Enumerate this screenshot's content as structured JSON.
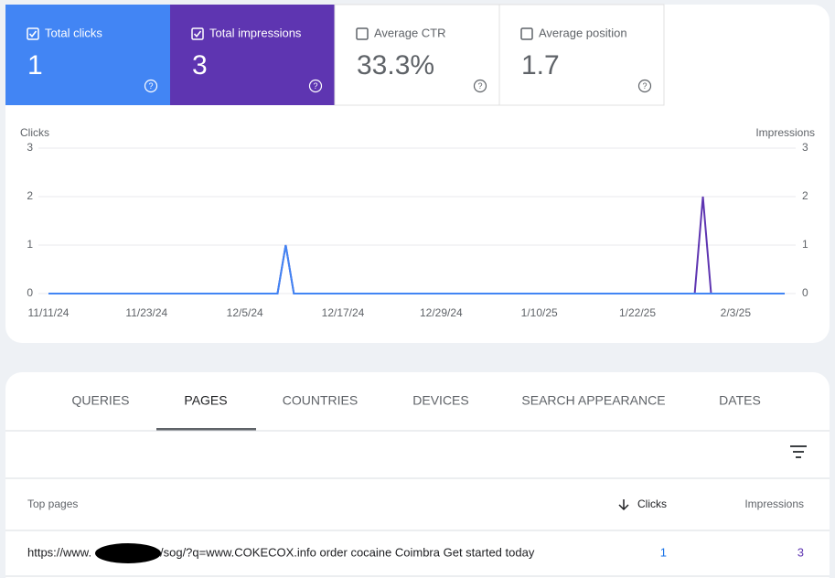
{
  "metrics": [
    {
      "label": "Total clicks",
      "value": "1",
      "checked": true,
      "color": "#4285f4"
    },
    {
      "label": "Total impressions",
      "value": "3",
      "checked": true,
      "color": "#5e35b1"
    },
    {
      "label": "Average CTR",
      "value": "33.3%",
      "checked": false
    },
    {
      "label": "Average position",
      "value": "1.7",
      "checked": false
    }
  ],
  "chart_data": {
    "type": "line",
    "x": [
      "11/11/24",
      "11/12/24",
      "11/13/24",
      "11/14/24",
      "11/15/24",
      "11/16/24",
      "11/17/24",
      "11/18/24",
      "11/19/24",
      "11/20/24",
      "11/21/24",
      "11/22/24",
      "11/23/24",
      "11/24/24",
      "11/25/24",
      "11/26/24",
      "11/27/24",
      "11/28/24",
      "11/29/24",
      "11/30/24",
      "12/1/24",
      "12/2/24",
      "12/3/24",
      "12/4/24",
      "12/5/24",
      "12/6/24",
      "12/7/24",
      "12/8/24",
      "12/9/24",
      "12/10/24",
      "12/11/24",
      "12/12/24",
      "12/13/24",
      "12/14/24",
      "12/15/24",
      "12/16/24",
      "12/17/24",
      "12/18/24",
      "12/19/24",
      "12/20/24",
      "12/21/24",
      "12/22/24",
      "12/23/24",
      "12/24/24",
      "12/25/24",
      "12/26/24",
      "12/27/24",
      "12/28/24",
      "12/29/24",
      "12/30/24",
      "12/31/24",
      "1/1/25",
      "1/2/25",
      "1/3/25",
      "1/4/25",
      "1/5/25",
      "1/6/25",
      "1/7/25",
      "1/8/25",
      "1/9/25",
      "1/10/25",
      "1/11/25",
      "1/12/25",
      "1/13/25",
      "1/14/25",
      "1/15/25",
      "1/16/25",
      "1/17/25",
      "1/18/25",
      "1/19/25",
      "1/20/25",
      "1/21/25",
      "1/22/25",
      "1/23/25",
      "1/24/25",
      "1/25/25",
      "1/26/25",
      "1/27/25",
      "1/28/25",
      "1/29/25",
      "1/30/25",
      "1/31/25",
      "2/1/25",
      "2/2/25",
      "2/3/25",
      "2/4/25",
      "2/5/25",
      "2/6/25",
      "2/7/25",
      "2/8/25",
      "2/9/25"
    ],
    "xticks": [
      "11/11/24",
      "11/23/24",
      "12/5/24",
      "12/17/24",
      "12/29/24",
      "1/10/25",
      "1/22/25",
      "2/3/25"
    ],
    "ylim": [
      0,
      3
    ],
    "yticks": [
      0,
      1,
      2,
      3
    ],
    "y2lim": [
      0,
      3
    ],
    "y2ticks": [
      0,
      1,
      2,
      3
    ],
    "grid": true,
    "series": [
      {
        "name": "Clicks",
        "color": "#4285f4",
        "values": [
          0,
          0,
          0,
          0,
          0,
          0,
          0,
          0,
          0,
          0,
          0,
          0,
          0,
          0,
          0,
          0,
          0,
          0,
          0,
          0,
          0,
          0,
          0,
          0,
          0,
          0,
          0,
          0,
          0,
          1,
          0,
          0,
          0,
          0,
          0,
          0,
          0,
          0,
          0,
          0,
          0,
          0,
          0,
          0,
          0,
          0,
          0,
          0,
          0,
          0,
          0,
          0,
          0,
          0,
          0,
          0,
          0,
          0,
          0,
          0,
          0,
          0,
          0,
          0,
          0,
          0,
          0,
          0,
          0,
          0,
          0,
          0,
          0,
          0,
          0,
          0,
          0,
          0,
          0,
          0,
          0,
          0,
          0,
          0,
          0,
          0,
          0,
          0,
          0,
          0,
          0
        ]
      },
      {
        "name": "Impressions",
        "color": "#5e35b1",
        "axis": "y2",
        "values": [
          0,
          0,
          0,
          0,
          0,
          0,
          0,
          0,
          0,
          0,
          0,
          0,
          0,
          0,
          0,
          0,
          0,
          0,
          0,
          0,
          0,
          0,
          0,
          0,
          0,
          0,
          0,
          0,
          0,
          1,
          0,
          0,
          0,
          0,
          0,
          0,
          0,
          0,
          0,
          0,
          0,
          0,
          0,
          0,
          0,
          0,
          0,
          0,
          0,
          0,
          0,
          0,
          0,
          0,
          0,
          0,
          0,
          0,
          0,
          0,
          0,
          0,
          0,
          0,
          0,
          0,
          0,
          0,
          0,
          0,
          0,
          0,
          0,
          0,
          0,
          0,
          0,
          0,
          0,
          0,
          2,
          0,
          0,
          0,
          0,
          0,
          0,
          0,
          0,
          0,
          0
        ]
      }
    ]
  },
  "tabs": [
    {
      "label": "QUERIES",
      "selected": false
    },
    {
      "label": "PAGES",
      "selected": true
    },
    {
      "label": "COUNTRIES",
      "selected": false
    },
    {
      "label": "DEVICES",
      "selected": false
    },
    {
      "label": "SEARCH APPEARANCE",
      "selected": false
    },
    {
      "label": "DATES",
      "selected": false
    }
  ],
  "table": {
    "headers": [
      "Top pages",
      "Clicks",
      "Impressions"
    ],
    "rows": [
      {
        "page_prefix": "https://www.",
        "page_suffix": "/sog/?q=www.COKECOX.info order cocaine Coimbra Get started today",
        "clicks": 1,
        "impressions": 3
      }
    ]
  }
}
